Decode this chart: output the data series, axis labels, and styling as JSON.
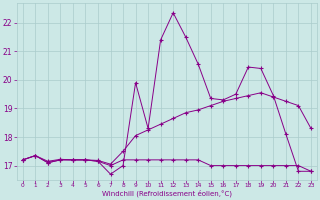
{
  "xlabel": "Windchill (Refroidissement éolien,°C)",
  "background_color": "#cce8e6",
  "grid_color": "#aacccc",
  "line_color": "#880088",
  "x_ticks": [
    0,
    1,
    2,
    3,
    4,
    5,
    6,
    7,
    8,
    9,
    10,
    11,
    12,
    13,
    14,
    15,
    16,
    17,
    18,
    19,
    20,
    21,
    22,
    23
  ],
  "y_ticks": [
    17,
    18,
    19,
    20,
    21,
    22
  ],
  "xlim": [
    -0.5,
    23.5
  ],
  "ylim": [
    16.5,
    22.7
  ],
  "series1_x": [
    0,
    1,
    2,
    3,
    4,
    5,
    6,
    7,
    8,
    9,
    10,
    11,
    12,
    13,
    14,
    15,
    16,
    17,
    18,
    19,
    20,
    21,
    22,
    23
  ],
  "series1_y": [
    17.2,
    17.35,
    17.1,
    17.2,
    17.2,
    17.2,
    17.15,
    16.7,
    17.0,
    19.9,
    18.3,
    21.4,
    22.35,
    21.5,
    20.55,
    19.35,
    19.3,
    19.5,
    20.45,
    20.4,
    19.45,
    18.1,
    16.8,
    16.8
  ],
  "series2_x": [
    0,
    1,
    2,
    3,
    4,
    5,
    6,
    7,
    8,
    9,
    10,
    11,
    12,
    13,
    14,
    15,
    16,
    17,
    18,
    19,
    20,
    21,
    22,
    23
  ],
  "series2_y": [
    17.2,
    17.35,
    17.1,
    17.2,
    17.2,
    17.2,
    17.15,
    17.0,
    17.2,
    17.2,
    17.2,
    17.2,
    17.2,
    17.2,
    17.2,
    17.0,
    17.0,
    17.0,
    17.0,
    17.0,
    17.0,
    17.0,
    17.0,
    16.8
  ],
  "series3_x": [
    0,
    1,
    2,
    3,
    4,
    5,
    6,
    7,
    8,
    9,
    10,
    11,
    12,
    13,
    14,
    15,
    16,
    17,
    18,
    19,
    20,
    21,
    22,
    23
  ],
  "series3_y": [
    17.2,
    17.35,
    17.15,
    17.22,
    17.2,
    17.2,
    17.18,
    17.05,
    17.5,
    18.05,
    18.25,
    18.45,
    18.65,
    18.85,
    18.95,
    19.1,
    19.25,
    19.35,
    19.45,
    19.55,
    19.4,
    19.25,
    19.1,
    18.3
  ]
}
